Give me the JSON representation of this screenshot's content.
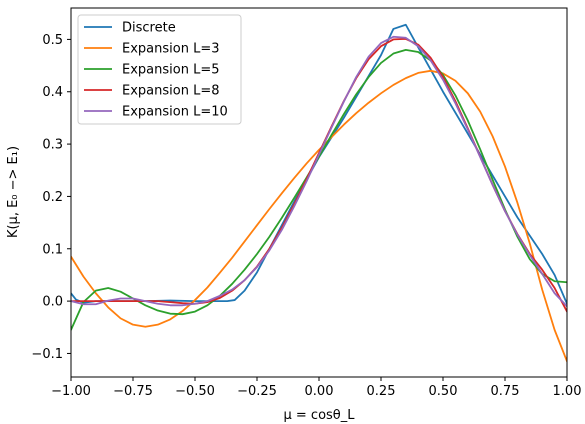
{
  "chart_data": {
    "type": "line",
    "xlabel": "μ = cosθ_L",
    "ylabel": "K(μ, E₀ −> E₁)",
    "xlim": [
      -1.0,
      1.0
    ],
    "ylim": [
      -0.145,
      0.56
    ],
    "grid": false,
    "legend_placement": "top-left",
    "x_ticks": [
      {
        "value": -1.0,
        "label": "−1.00"
      },
      {
        "value": -0.75,
        "label": "−0.75"
      },
      {
        "value": -0.5,
        "label": "−0.50"
      },
      {
        "value": -0.25,
        "label": "−0.25"
      },
      {
        "value": 0.0,
        "label": "0.00"
      },
      {
        "value": 0.25,
        "label": "0.25"
      },
      {
        "value": 0.5,
        "label": "0.50"
      },
      {
        "value": 0.75,
        "label": "0.75"
      },
      {
        "value": 1.0,
        "label": "1.00"
      }
    ],
    "y_ticks": [
      {
        "value": -0.1,
        "label": "−0.1"
      },
      {
        "value": 0.0,
        "label": "0.0"
      },
      {
        "value": 0.1,
        "label": "0.1"
      },
      {
        "value": 0.2,
        "label": "0.2"
      },
      {
        "value": 0.3,
        "label": "0.3"
      },
      {
        "value": 0.4,
        "label": "0.4"
      },
      {
        "value": 0.5,
        "label": "0.5"
      }
    ],
    "series": [
      {
        "name": "Discrete",
        "color": "#1f77b4",
        "x": [
          -1.0,
          -0.98,
          -0.95,
          -0.9,
          -0.8,
          -0.7,
          -0.6,
          -0.5,
          -0.4,
          -0.37,
          -0.34,
          -0.3,
          -0.25,
          -0.2,
          -0.1,
          0.0,
          0.1,
          0.2,
          0.25,
          0.3,
          0.35,
          0.4,
          0.5,
          0.6,
          0.7,
          0.75,
          0.8,
          0.9,
          0.95,
          1.0
        ],
        "y": [
          0.015,
          0.003,
          -0.003,
          0.0,
          0.0,
          0.0,
          0.001,
          0.0,
          0.0,
          0.0,
          0.002,
          0.02,
          0.055,
          0.1,
          0.19,
          0.275,
          0.35,
          0.43,
          0.47,
          0.52,
          0.528,
          0.485,
          0.4,
          0.32,
          0.24,
          0.2,
          0.16,
          0.09,
          0.05,
          -0.005
        ]
      },
      {
        "name": "Expansion L=3",
        "color": "#ff7f0e",
        "x": [
          -1.0,
          -0.95,
          -0.9,
          -0.85,
          -0.8,
          -0.75,
          -0.7,
          -0.65,
          -0.6,
          -0.55,
          -0.5,
          -0.45,
          -0.4,
          -0.35,
          -0.3,
          -0.25,
          -0.2,
          -0.15,
          -0.1,
          -0.05,
          0.0,
          0.05,
          0.1,
          0.15,
          0.2,
          0.25,
          0.3,
          0.35,
          0.4,
          0.45,
          0.5,
          0.55,
          0.6,
          0.65,
          0.7,
          0.75,
          0.8,
          0.85,
          0.9,
          0.95,
          1.0
        ],
        "y": [
          0.085,
          0.047,
          0.015,
          -0.012,
          -0.033,
          -0.045,
          -0.049,
          -0.045,
          -0.035,
          -0.019,
          0.002,
          0.026,
          0.054,
          0.083,
          0.114,
          0.145,
          0.176,
          0.206,
          0.235,
          0.263,
          0.289,
          0.313,
          0.337,
          0.359,
          0.379,
          0.397,
          0.413,
          0.426,
          0.436,
          0.44,
          0.435,
          0.421,
          0.397,
          0.362,
          0.315,
          0.257,
          0.188,
          0.11,
          0.022,
          -0.055,
          -0.115
        ]
      },
      {
        "name": "Expansion L=5",
        "color": "#2ca02c",
        "x": [
          -1.0,
          -0.95,
          -0.9,
          -0.85,
          -0.8,
          -0.75,
          -0.7,
          -0.65,
          -0.6,
          -0.55,
          -0.5,
          -0.45,
          -0.4,
          -0.35,
          -0.3,
          -0.25,
          -0.2,
          -0.15,
          -0.1,
          -0.05,
          0.0,
          0.05,
          0.1,
          0.15,
          0.2,
          0.25,
          0.3,
          0.35,
          0.4,
          0.45,
          0.5,
          0.55,
          0.6,
          0.65,
          0.7,
          0.75,
          0.8,
          0.85,
          0.9,
          0.95,
          1.0
        ],
        "y": [
          -0.055,
          -0.002,
          0.02,
          0.025,
          0.018,
          0.005,
          -0.008,
          -0.018,
          -0.024,
          -0.025,
          -0.02,
          -0.008,
          0.01,
          0.033,
          0.06,
          0.09,
          0.123,
          0.159,
          0.197,
          0.236,
          0.276,
          0.317,
          0.357,
          0.395,
          0.428,
          0.455,
          0.473,
          0.48,
          0.476,
          0.46,
          0.432,
          0.393,
          0.345,
          0.29,
          0.232,
          0.175,
          0.123,
          0.08,
          0.052,
          0.038,
          0.036
        ]
      },
      {
        "name": "Expansion L=8",
        "color": "#d62728",
        "x": [
          -1.0,
          -0.95,
          -0.9,
          -0.85,
          -0.8,
          -0.75,
          -0.7,
          -0.65,
          -0.6,
          -0.55,
          -0.5,
          -0.45,
          -0.4,
          -0.35,
          -0.3,
          -0.25,
          -0.2,
          -0.15,
          -0.1,
          -0.05,
          0.0,
          0.05,
          0.1,
          0.15,
          0.2,
          0.25,
          0.3,
          0.35,
          0.4,
          0.45,
          0.5,
          0.55,
          0.6,
          0.65,
          0.7,
          0.75,
          0.8,
          0.85,
          0.9,
          0.95,
          1.0
        ],
        "y": [
          0.0,
          0.0,
          0.0,
          0.0,
          0.0,
          0.0,
          0.0,
          0.0,
          -0.002,
          -0.004,
          -0.005,
          -0.002,
          0.006,
          0.02,
          0.04,
          0.066,
          0.1,
          0.14,
          0.185,
          0.233,
          0.283,
          0.333,
          0.382,
          0.426,
          0.462,
          0.487,
          0.5,
          0.501,
          0.49,
          0.465,
          0.428,
          0.382,
          0.33,
          0.276,
          0.222,
          0.172,
          0.128,
          0.09,
          0.06,
          0.025,
          -0.02
        ]
      },
      {
        "name": "Expansion L=10",
        "color": "#9467bd",
        "x": [
          -1.0,
          -0.95,
          -0.9,
          -0.85,
          -0.8,
          -0.75,
          -0.7,
          -0.65,
          -0.6,
          -0.55,
          -0.5,
          -0.45,
          -0.4,
          -0.35,
          -0.3,
          -0.25,
          -0.2,
          -0.15,
          -0.1,
          -0.05,
          0.0,
          0.05,
          0.1,
          0.15,
          0.2,
          0.25,
          0.3,
          0.35,
          0.4,
          0.45,
          0.5,
          0.55,
          0.6,
          0.65,
          0.7,
          0.75,
          0.8,
          0.85,
          0.9,
          0.95,
          1.0
        ],
        "y": [
          0.0,
          -0.006,
          -0.006,
          0.001,
          0.005,
          0.005,
          0.0,
          -0.005,
          -0.008,
          -0.008,
          -0.005,
          0.0,
          0.01,
          0.022,
          0.04,
          0.065,
          0.097,
          0.136,
          0.181,
          0.229,
          0.28,
          0.331,
          0.381,
          0.428,
          0.467,
          0.493,
          0.505,
          0.503,
          0.487,
          0.46,
          0.423,
          0.378,
          0.328,
          0.275,
          0.222,
          0.172,
          0.127,
          0.088,
          0.052,
          0.015,
          -0.01
        ]
      }
    ]
  }
}
